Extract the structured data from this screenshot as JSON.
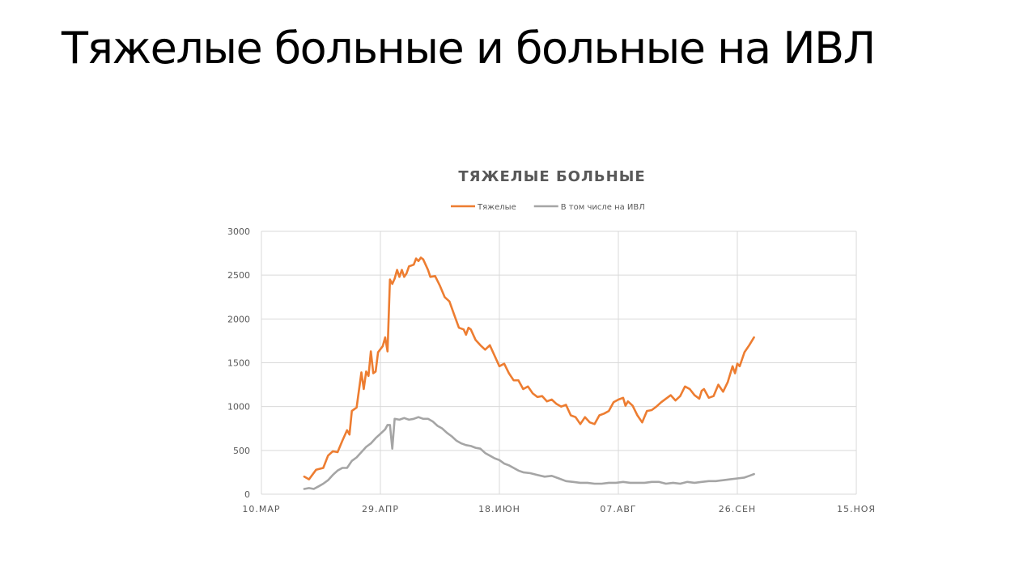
{
  "slide": {
    "title": "Тяжелые больные и больные на ИВЛ"
  },
  "chart_data": {
    "type": "line",
    "title": "ТЯЖЕЛЫЕ БОЛЬНЫЕ",
    "xlabel": "",
    "ylabel": "",
    "x_axis_type": "date",
    "x_range": [
      "2020-03-10",
      "2020-11-15"
    ],
    "x_ticks": [
      "2020-03-10",
      "2020-04-29",
      "2020-06-18",
      "2020-08-07",
      "2020-09-26",
      "2020-11-15"
    ],
    "x_tick_labels": [
      "10.МАР",
      "29.АПР",
      "18.ИЮН",
      "07.АВГ",
      "26.СЕН",
      "15.НОЯ"
    ],
    "ylim": [
      0,
      3000
    ],
    "y_ticks": [
      0,
      500,
      1000,
      1500,
      2000,
      2500,
      3000
    ],
    "grid": true,
    "legend_position": "top",
    "series": [
      {
        "name": "Тяжелые",
        "color": "#ed7d31",
        "points": [
          [
            "2020-03-28",
            200
          ],
          [
            "2020-03-30",
            170
          ],
          [
            "2020-04-02",
            280
          ],
          [
            "2020-04-05",
            300
          ],
          [
            "2020-04-07",
            440
          ],
          [
            "2020-04-09",
            490
          ],
          [
            "2020-04-11",
            480
          ],
          [
            "2020-04-13",
            610
          ],
          [
            "2020-04-15",
            730
          ],
          [
            "2020-04-16",
            680
          ],
          [
            "2020-04-17",
            950
          ],
          [
            "2020-04-19",
            990
          ],
          [
            "2020-04-21",
            1390
          ],
          [
            "2020-04-22",
            1200
          ],
          [
            "2020-04-23",
            1400
          ],
          [
            "2020-04-24",
            1350
          ],
          [
            "2020-04-25",
            1630
          ],
          [
            "2020-04-26",
            1380
          ],
          [
            "2020-04-27",
            1400
          ],
          [
            "2020-04-28",
            1620
          ],
          [
            "2020-04-30",
            1690
          ],
          [
            "2020-05-01",
            1790
          ],
          [
            "2020-05-02",
            1630
          ],
          [
            "2020-05-03",
            2450
          ],
          [
            "2020-05-04",
            2400
          ],
          [
            "2020-05-05",
            2460
          ],
          [
            "2020-05-06",
            2560
          ],
          [
            "2020-05-07",
            2480
          ],
          [
            "2020-05-08",
            2560
          ],
          [
            "2020-05-09",
            2480
          ],
          [
            "2020-05-10",
            2520
          ],
          [
            "2020-05-11",
            2600
          ],
          [
            "2020-05-13",
            2620
          ],
          [
            "2020-05-14",
            2690
          ],
          [
            "2020-05-15",
            2660
          ],
          [
            "2020-05-16",
            2700
          ],
          [
            "2020-05-17",
            2680
          ],
          [
            "2020-05-19",
            2560
          ],
          [
            "2020-05-20",
            2480
          ],
          [
            "2020-05-22",
            2490
          ],
          [
            "2020-05-24",
            2380
          ],
          [
            "2020-05-26",
            2250
          ],
          [
            "2020-05-28",
            2200
          ],
          [
            "2020-05-30",
            2050
          ],
          [
            "2020-06-01",
            1900
          ],
          [
            "2020-06-03",
            1880
          ],
          [
            "2020-06-04",
            1820
          ],
          [
            "2020-06-05",
            1900
          ],
          [
            "2020-06-06",
            1880
          ],
          [
            "2020-06-08",
            1760
          ],
          [
            "2020-06-10",
            1700
          ],
          [
            "2020-06-12",
            1650
          ],
          [
            "2020-06-14",
            1700
          ],
          [
            "2020-06-16",
            1580
          ],
          [
            "2020-06-18",
            1460
          ],
          [
            "2020-06-20",
            1490
          ],
          [
            "2020-06-22",
            1380
          ],
          [
            "2020-06-24",
            1300
          ],
          [
            "2020-06-26",
            1300
          ],
          [
            "2020-06-28",
            1200
          ],
          [
            "2020-06-30",
            1230
          ],
          [
            "2020-07-02",
            1150
          ],
          [
            "2020-07-04",
            1110
          ],
          [
            "2020-07-06",
            1120
          ],
          [
            "2020-07-08",
            1060
          ],
          [
            "2020-07-10",
            1080
          ],
          [
            "2020-07-12",
            1030
          ],
          [
            "2020-07-14",
            1000
          ],
          [
            "2020-07-16",
            1020
          ],
          [
            "2020-07-18",
            900
          ],
          [
            "2020-07-20",
            880
          ],
          [
            "2020-07-22",
            800
          ],
          [
            "2020-07-24",
            880
          ],
          [
            "2020-07-26",
            820
          ],
          [
            "2020-07-28",
            800
          ],
          [
            "2020-07-30",
            900
          ],
          [
            "2020-08-01",
            920
          ],
          [
            "2020-08-03",
            950
          ],
          [
            "2020-08-05",
            1050
          ],
          [
            "2020-08-07",
            1080
          ],
          [
            "2020-08-09",
            1100
          ],
          [
            "2020-08-10",
            1010
          ],
          [
            "2020-08-11",
            1060
          ],
          [
            "2020-08-13",
            1010
          ],
          [
            "2020-08-15",
            900
          ],
          [
            "2020-08-17",
            820
          ],
          [
            "2020-08-19",
            950
          ],
          [
            "2020-08-21",
            960
          ],
          [
            "2020-08-23",
            1000
          ],
          [
            "2020-08-25",
            1050
          ],
          [
            "2020-08-27",
            1090
          ],
          [
            "2020-08-29",
            1130
          ],
          [
            "2020-08-31",
            1070
          ],
          [
            "2020-09-02",
            1120
          ],
          [
            "2020-09-04",
            1230
          ],
          [
            "2020-09-06",
            1200
          ],
          [
            "2020-09-08",
            1130
          ],
          [
            "2020-09-10",
            1090
          ],
          [
            "2020-09-11",
            1180
          ],
          [
            "2020-09-12",
            1200
          ],
          [
            "2020-09-14",
            1100
          ],
          [
            "2020-09-16",
            1120
          ],
          [
            "2020-09-18",
            1250
          ],
          [
            "2020-09-20",
            1170
          ],
          [
            "2020-09-22",
            1280
          ],
          [
            "2020-09-24",
            1460
          ],
          [
            "2020-09-25",
            1380
          ],
          [
            "2020-09-26",
            1490
          ],
          [
            "2020-09-27",
            1460
          ],
          [
            "2020-09-29",
            1620
          ],
          [
            "2020-10-01",
            1700
          ],
          [
            "2020-10-03",
            1790
          ]
        ]
      },
      {
        "name": "В том числе на ИВЛ",
        "color": "#a5a5a5",
        "points": [
          [
            "2020-03-28",
            60
          ],
          [
            "2020-03-30",
            70
          ],
          [
            "2020-04-01",
            60
          ],
          [
            "2020-04-03",
            90
          ],
          [
            "2020-04-05",
            120
          ],
          [
            "2020-04-07",
            160
          ],
          [
            "2020-04-09",
            220
          ],
          [
            "2020-04-11",
            270
          ],
          [
            "2020-04-13",
            300
          ],
          [
            "2020-04-15",
            300
          ],
          [
            "2020-04-17",
            380
          ],
          [
            "2020-04-19",
            420
          ],
          [
            "2020-04-21",
            480
          ],
          [
            "2020-04-23",
            540
          ],
          [
            "2020-04-25",
            580
          ],
          [
            "2020-04-27",
            640
          ],
          [
            "2020-04-29",
            690
          ],
          [
            "2020-05-01",
            740
          ],
          [
            "2020-05-02",
            790
          ],
          [
            "2020-05-03",
            790
          ],
          [
            "2020-05-04",
            520
          ],
          [
            "2020-05-05",
            860
          ],
          [
            "2020-05-07",
            850
          ],
          [
            "2020-05-09",
            870
          ],
          [
            "2020-05-11",
            850
          ],
          [
            "2020-05-13",
            860
          ],
          [
            "2020-05-15",
            880
          ],
          [
            "2020-05-17",
            860
          ],
          [
            "2020-05-19",
            860
          ],
          [
            "2020-05-21",
            830
          ],
          [
            "2020-05-23",
            780
          ],
          [
            "2020-05-25",
            750
          ],
          [
            "2020-05-27",
            700
          ],
          [
            "2020-05-29",
            660
          ],
          [
            "2020-05-31",
            610
          ],
          [
            "2020-06-02",
            580
          ],
          [
            "2020-06-04",
            560
          ],
          [
            "2020-06-06",
            550
          ],
          [
            "2020-06-08",
            530
          ],
          [
            "2020-06-10",
            520
          ],
          [
            "2020-06-12",
            470
          ],
          [
            "2020-06-14",
            440
          ],
          [
            "2020-06-16",
            410
          ],
          [
            "2020-06-18",
            390
          ],
          [
            "2020-06-20",
            350
          ],
          [
            "2020-06-22",
            330
          ],
          [
            "2020-06-24",
            300
          ],
          [
            "2020-06-26",
            270
          ],
          [
            "2020-06-28",
            250
          ],
          [
            "2020-07-01",
            240
          ],
          [
            "2020-07-04",
            220
          ],
          [
            "2020-07-07",
            200
          ],
          [
            "2020-07-10",
            210
          ],
          [
            "2020-07-13",
            180
          ],
          [
            "2020-07-16",
            150
          ],
          [
            "2020-07-19",
            140
          ],
          [
            "2020-07-22",
            130
          ],
          [
            "2020-07-25",
            130
          ],
          [
            "2020-07-28",
            120
          ],
          [
            "2020-07-31",
            120
          ],
          [
            "2020-08-03",
            130
          ],
          [
            "2020-08-06",
            130
          ],
          [
            "2020-08-09",
            140
          ],
          [
            "2020-08-12",
            130
          ],
          [
            "2020-08-15",
            130
          ],
          [
            "2020-08-18",
            130
          ],
          [
            "2020-08-21",
            140
          ],
          [
            "2020-08-24",
            140
          ],
          [
            "2020-08-27",
            120
          ],
          [
            "2020-08-30",
            130
          ],
          [
            "2020-09-02",
            120
          ],
          [
            "2020-09-05",
            140
          ],
          [
            "2020-09-08",
            130
          ],
          [
            "2020-09-11",
            140
          ],
          [
            "2020-09-14",
            150
          ],
          [
            "2020-09-17",
            150
          ],
          [
            "2020-09-20",
            160
          ],
          [
            "2020-09-23",
            170
          ],
          [
            "2020-09-26",
            180
          ],
          [
            "2020-09-29",
            190
          ],
          [
            "2020-10-01",
            210
          ],
          [
            "2020-10-03",
            230
          ]
        ]
      }
    ]
  }
}
